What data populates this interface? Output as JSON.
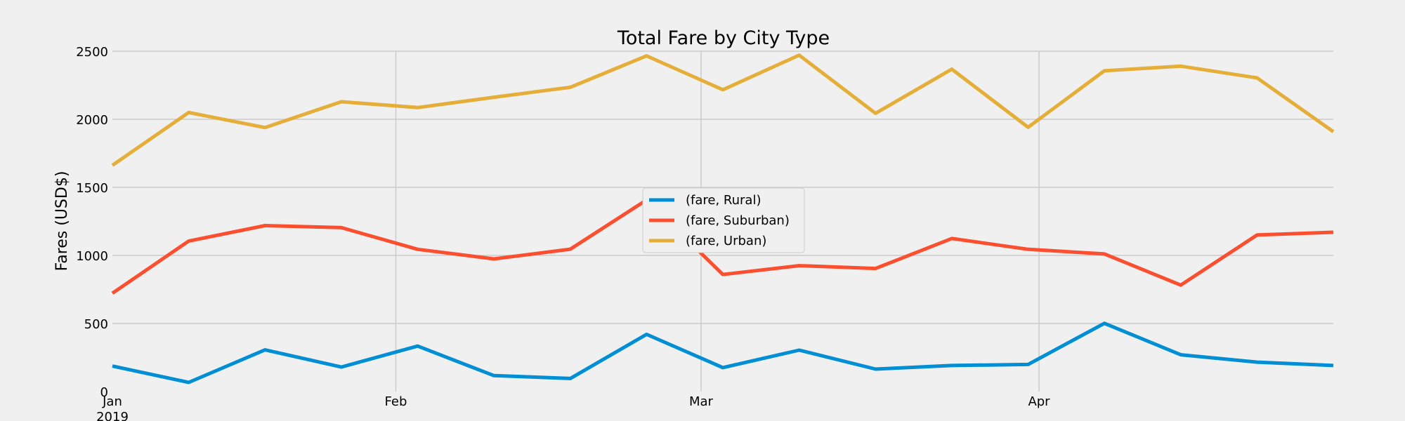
{
  "chart_data": {
    "type": "line",
    "title": "Total Fare by City Type",
    "ylabel": "Fares (USD$)",
    "xlabel": "",
    "ylim": [
      0,
      2500
    ],
    "yticks": [
      0,
      500,
      1000,
      1500,
      2000,
      2500
    ],
    "xlim": [
      "2019-01-06",
      "2019-04-28"
    ],
    "xticks": [
      {
        "date": "2019-01-06",
        "label": "Jan",
        "sublabel": "2019"
      },
      {
        "date": "2019-02-01",
        "label": "Feb",
        "sublabel": ""
      },
      {
        "date": "2019-03-01",
        "label": "Mar",
        "sublabel": ""
      },
      {
        "date": "2019-04-01",
        "label": "Apr",
        "sublabel": ""
      }
    ],
    "grid": true,
    "legend_position": "center",
    "x": [
      "2019-01-06",
      "2019-01-13",
      "2019-01-20",
      "2019-01-27",
      "2019-02-03",
      "2019-02-10",
      "2019-02-17",
      "2019-02-24",
      "2019-03-03",
      "2019-03-10",
      "2019-03-17",
      "2019-03-24",
      "2019-03-31",
      "2019-04-07",
      "2019-04-14",
      "2019-04-21",
      "2019-04-28"
    ],
    "series": [
      {
        "name": "(fare, Rural)",
        "color": "#008fd5",
        "values": [
          187,
          67,
          306,
          180,
          334,
          117,
          96,
          420,
          176,
          304,
          165,
          191,
          199,
          501,
          270,
          216,
          191
        ]
      },
      {
        "name": "(fare, Suburban)",
        "color": "#fc4f30",
        "values": [
          722,
          1105,
          1219,
          1204,
          1045,
          974,
          1046,
          1407,
          860,
          925,
          904,
          1124,
          1045,
          1011,
          782,
          1150,
          1170
        ]
      },
      {
        "name": "(fare, Urban)",
        "color": "#e5ae38",
        "values": [
          1662,
          2050,
          1939,
          2129,
          2086,
          2162,
          2235,
          2466,
          2217,
          2471,
          2044,
          2368,
          1941,
          2356,
          2390,
          2304,
          1909
        ]
      }
    ]
  }
}
